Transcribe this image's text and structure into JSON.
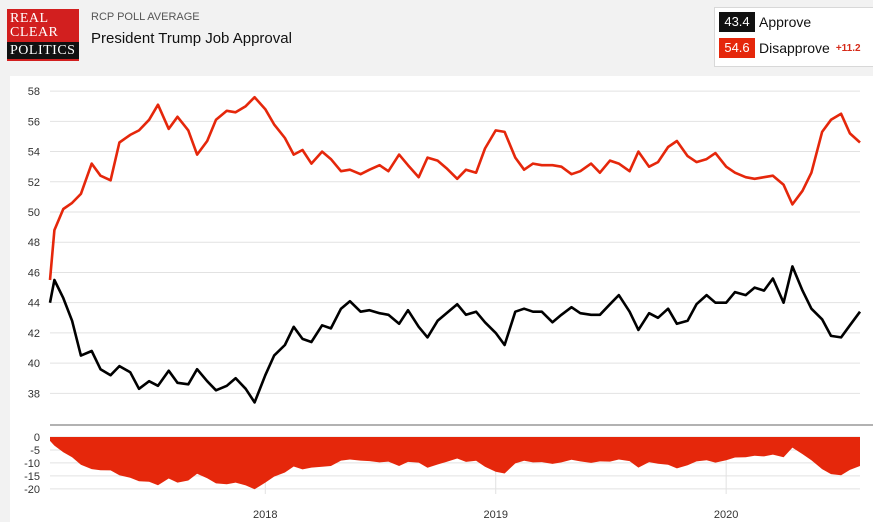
{
  "header": {
    "logo_line1": "REAL",
    "logo_line2": "CLEAR",
    "logo_line3": "POLITICS",
    "subtitle": "RCP POLL AVERAGE",
    "title": "President Trump Job Approval"
  },
  "legend": {
    "approve_value": "43.4",
    "approve_label": "Approve",
    "disapprove_value": "54.6",
    "disapprove_label": "Disapprove",
    "spread": "+11.2"
  },
  "colors": {
    "approve": "#000000",
    "disapprove": "#e5270b",
    "spread_fill": "#e5270b",
    "grid": "#e2e2e2"
  },
  "chart_data": [
    {
      "type": "line",
      "title": "",
      "xlabel": "",
      "ylabel": "",
      "x": [
        "2017-01-25",
        "2017-02-01",
        "2017-02-15",
        "2017-03-01",
        "2017-03-15",
        "2017-04-01",
        "2017-04-15",
        "2017-05-01",
        "2017-05-15",
        "2017-06-01",
        "2017-06-15",
        "2017-07-01",
        "2017-07-15",
        "2017-08-01",
        "2017-08-15",
        "2017-09-01",
        "2017-09-15",
        "2017-10-01",
        "2017-10-15",
        "2017-11-01",
        "2017-11-15",
        "2017-12-01",
        "2017-12-15",
        "2018-01-01",
        "2018-01-15",
        "2018-02-01",
        "2018-02-15",
        "2018-03-01",
        "2018-03-15",
        "2018-04-01",
        "2018-04-15",
        "2018-05-01",
        "2018-05-15",
        "2018-06-01",
        "2018-06-15",
        "2018-07-01",
        "2018-07-15",
        "2018-08-01",
        "2018-08-15",
        "2018-09-01",
        "2018-09-15",
        "2018-10-01",
        "2018-10-15",
        "2018-11-01",
        "2018-11-15",
        "2018-12-01",
        "2018-12-15",
        "2019-01-01",
        "2019-01-15",
        "2019-02-01",
        "2019-02-15",
        "2019-03-01",
        "2019-03-15",
        "2019-04-01",
        "2019-04-15",
        "2019-05-01",
        "2019-05-15",
        "2019-06-01",
        "2019-06-15",
        "2019-07-01",
        "2019-07-15",
        "2019-08-01",
        "2019-08-15",
        "2019-09-01",
        "2019-09-15",
        "2019-10-01",
        "2019-10-15",
        "2019-11-01",
        "2019-11-15",
        "2019-12-01",
        "2019-12-15",
        "2020-01-01",
        "2020-01-15",
        "2020-02-01",
        "2020-02-15",
        "2020-03-01",
        "2020-03-15",
        "2020-04-01",
        "2020-04-15",
        "2020-05-01",
        "2020-05-15",
        "2020-06-01",
        "2020-06-15",
        "2020-07-01",
        "2020-07-15",
        "2020-07-31"
      ],
      "x_ticks": [
        "2018",
        "2019",
        "2020"
      ],
      "ylim": [
        36.5,
        59
      ],
      "y_ticks": [
        38,
        40,
        42,
        44,
        46,
        48,
        50,
        52,
        54,
        56,
        58
      ],
      "grid": true,
      "series": [
        {
          "name": "Approve",
          "color": "#000000",
          "values": [
            44.0,
            45.5,
            44.3,
            42.8,
            40.5,
            40.8,
            39.6,
            39.2,
            39.8,
            39.4,
            38.3,
            38.8,
            38.5,
            39.5,
            38.7,
            38.6,
            39.6,
            38.8,
            38.2,
            38.5,
            39.0,
            38.3,
            37.4,
            39.2,
            40.5,
            41.2,
            42.4,
            41.6,
            41.4,
            42.5,
            42.3,
            43.6,
            44.1,
            43.4,
            43.5,
            43.3,
            43.2,
            42.6,
            43.5,
            42.4,
            41.7,
            42.8,
            43.3,
            43.9,
            43.2,
            43.4,
            42.7,
            42.0,
            41.2,
            43.4,
            43.6,
            43.4,
            43.4,
            42.7,
            43.2,
            43.7,
            43.3,
            43.2,
            43.2,
            43.9,
            44.5,
            43.4,
            42.2,
            43.3,
            43.0,
            43.6,
            42.6,
            42.8,
            43.9,
            44.5,
            44.0,
            44.0,
            44.7,
            44.5,
            45.0,
            44.8,
            45.6,
            44.0,
            46.4,
            44.8,
            43.6,
            42.9,
            41.8,
            41.7,
            42.5,
            43.4
          ]
        },
        {
          "name": "Disapprove",
          "color": "#e5270b",
          "values": [
            45.5,
            48.8,
            50.2,
            50.6,
            51.2,
            53.2,
            52.4,
            52.1,
            54.6,
            55.1,
            55.4,
            56.1,
            57.1,
            55.5,
            56.3,
            55.4,
            53.8,
            54.7,
            56.1,
            56.7,
            56.6,
            57.0,
            57.6,
            56.8,
            55.8,
            54.9,
            53.8,
            54.1,
            53.2,
            54.0,
            53.5,
            52.7,
            52.8,
            52.5,
            52.8,
            53.1,
            52.7,
            53.8,
            53.1,
            52.3,
            53.6,
            53.4,
            52.9,
            52.2,
            52.8,
            52.6,
            54.2,
            55.4,
            55.3,
            53.6,
            52.8,
            53.2,
            53.1,
            53.1,
            53.0,
            52.5,
            52.7,
            53.2,
            52.6,
            53.4,
            53.2,
            52.7,
            54.0,
            53.0,
            53.3,
            54.3,
            54.7,
            53.7,
            53.3,
            53.5,
            53.9,
            53.0,
            52.6,
            52.3,
            52.2,
            52.3,
            52.4,
            51.8,
            50.5,
            51.4,
            52.6,
            55.3,
            56.1,
            56.5,
            55.2,
            54.6
          ]
        }
      ]
    },
    {
      "type": "area",
      "title": "",
      "x": [
        "2017-01-25",
        "2017-02-01",
        "2017-02-15",
        "2017-03-01",
        "2017-03-15",
        "2017-04-01",
        "2017-04-15",
        "2017-05-01",
        "2017-05-15",
        "2017-06-01",
        "2017-06-15",
        "2017-07-01",
        "2017-07-15",
        "2017-08-01",
        "2017-08-15",
        "2017-09-01",
        "2017-09-15",
        "2017-10-01",
        "2017-10-15",
        "2017-11-01",
        "2017-11-15",
        "2017-12-01",
        "2017-12-15",
        "2018-01-01",
        "2018-01-15",
        "2018-02-01",
        "2018-02-15",
        "2018-03-01",
        "2018-03-15",
        "2018-04-01",
        "2018-04-15",
        "2018-05-01",
        "2018-05-15",
        "2018-06-01",
        "2018-06-15",
        "2018-07-01",
        "2018-07-15",
        "2018-08-01",
        "2018-08-15",
        "2018-09-01",
        "2018-09-15",
        "2018-10-01",
        "2018-10-15",
        "2018-11-01",
        "2018-11-15",
        "2018-12-01",
        "2018-12-15",
        "2019-01-01",
        "2019-01-15",
        "2019-02-01",
        "2019-02-15",
        "2019-03-01",
        "2019-03-15",
        "2019-04-01",
        "2019-04-15",
        "2019-05-01",
        "2019-05-15",
        "2019-06-01",
        "2019-06-15",
        "2019-07-01",
        "2019-07-15",
        "2019-08-01",
        "2019-08-15",
        "2019-09-01",
        "2019-09-15",
        "2019-10-01",
        "2019-10-15",
        "2019-11-01",
        "2019-11-15",
        "2019-12-01",
        "2019-12-15",
        "2020-01-01",
        "2020-01-15",
        "2020-02-01",
        "2020-02-15",
        "2020-03-01",
        "2020-03-15",
        "2020-04-01",
        "2020-04-15",
        "2020-05-01",
        "2020-05-15",
        "2020-06-01",
        "2020-06-15",
        "2020-07-01",
        "2020-07-15",
        "2020-07-31"
      ],
      "x_ticks": [
        "2018",
        "2019",
        "2020"
      ],
      "ylim": [
        -22,
        0
      ],
      "y_ticks": [
        0,
        -5,
        -10,
        -15,
        -20
      ],
      "series": [
        {
          "name": "Spread",
          "color": "#e5270b",
          "values": [
            -1.5,
            -3.3,
            -5.9,
            -7.8,
            -10.7,
            -12.4,
            -12.8,
            -12.9,
            -14.8,
            -15.7,
            -17.1,
            -17.3,
            -18.6,
            -16.0,
            -17.6,
            -16.8,
            -14.2,
            -15.9,
            -17.9,
            -18.2,
            -17.6,
            -18.7,
            -20.2,
            -17.6,
            -15.3,
            -13.7,
            -11.4,
            -12.5,
            -11.8,
            -11.5,
            -11.2,
            -9.1,
            -8.7,
            -9.1,
            -9.3,
            -9.8,
            -9.5,
            -11.2,
            -9.6,
            -9.9,
            -11.9,
            -10.6,
            -9.6,
            -8.3,
            -9.6,
            -9.2,
            -11.5,
            -13.4,
            -14.1,
            -10.2,
            -9.2,
            -9.8,
            -9.7,
            -10.4,
            -9.8,
            -8.8,
            -9.4,
            -10.0,
            -9.4,
            -9.5,
            -8.7,
            -9.3,
            -11.8,
            -9.7,
            -10.3,
            -10.7,
            -12.1,
            -10.9,
            -9.4,
            -9.0,
            -9.9,
            -9.0,
            -7.9,
            -7.8,
            -7.2,
            -7.5,
            -6.8,
            -7.8,
            -4.1,
            -6.6,
            -9.0,
            -12.4,
            -14.3,
            -14.8,
            -12.7,
            -11.2
          ]
        }
      ]
    }
  ]
}
